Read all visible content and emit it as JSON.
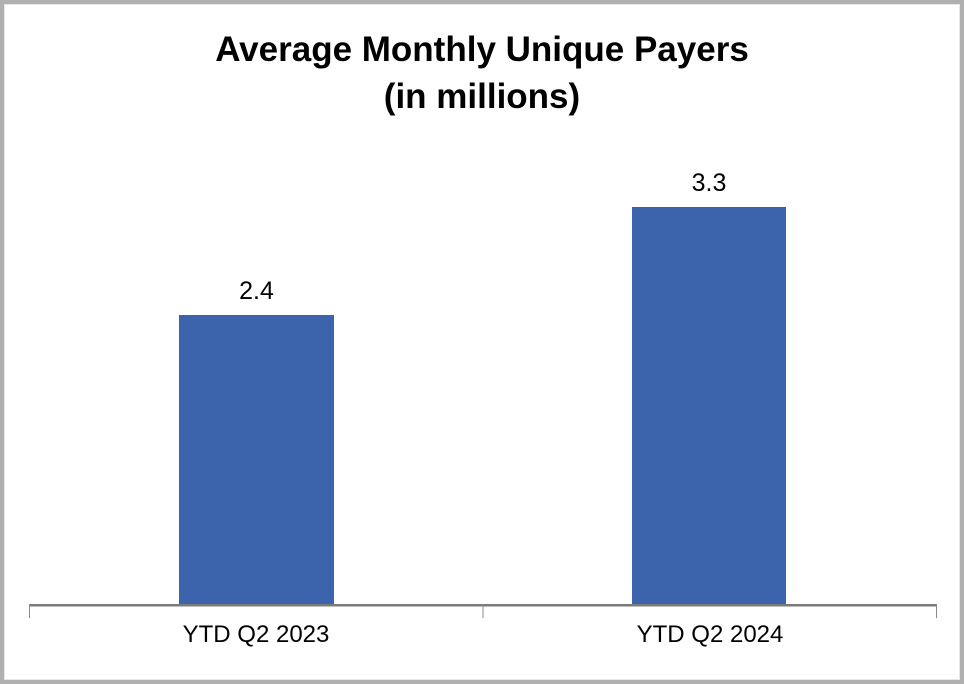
{
  "chart_data": {
    "type": "bar",
    "title": "Average Monthly Unique Payers",
    "subtitle": "(in millions)",
    "categories": [
      "YTD Q2 2023",
      "YTD Q2 2024"
    ],
    "values": [
      2.4,
      3.3
    ],
    "value_labels": [
      "2.4",
      "3.3"
    ],
    "series": [
      {
        "name": "Average Monthly Unique Payers (millions)",
        "values": [
          2.4,
          3.3
        ]
      }
    ],
    "ylim": [
      0,
      3.5
    ],
    "xlabel": "",
    "ylabel": "",
    "grid": false,
    "legend": false,
    "bar_color": "#3C64AC",
    "axis_color": "#7A7A7A",
    "frame_border_color": "#B0B0B0",
    "text_color": "#000000",
    "background_color": "#FFFFFF"
  }
}
